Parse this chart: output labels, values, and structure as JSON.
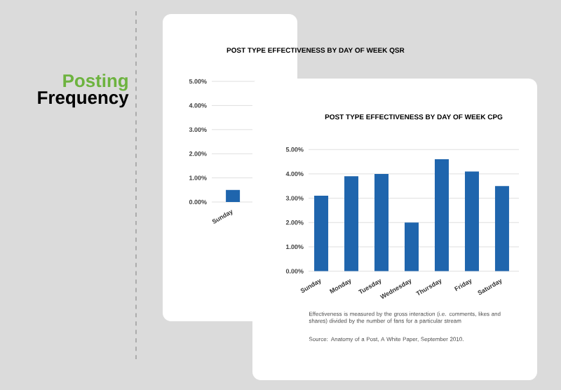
{
  "chart_data": [
    {
      "type": "other",
      "annotations": [
        "Posting",
        "Frequency"
      ]
    },
    {
      "type": "bar",
      "title": "POST TYPE EFFECTIVENESS BY DAY OF WEEK QSR",
      "categories": [
        "Sunday"
      ],
      "values": [
        0.5
      ],
      "color": "#1f65ad",
      "ylim": [
        0,
        5
      ],
      "yticks": [
        {
          "value": 0,
          "label": "0.00%"
        },
        {
          "value": 1,
          "label": "1.00%"
        },
        {
          "value": 2,
          "label": "2.00%"
        },
        {
          "value": 3,
          "label": "3.00%"
        },
        {
          "value": 4,
          "label": "4.00%"
        },
        {
          "value": 5,
          "label": "5.00%"
        }
      ],
      "grid": "y"
    },
    {
      "type": "bar",
      "title": "POST TYPE EFFECTIVENESS BY DAY OF WEEK CPG",
      "categories": [
        "Sunday",
        "Monday",
        "Tuesday",
        "Wednesday",
        "Thursday",
        "Friday",
        "Saturday"
      ],
      "values": [
        3.1,
        3.9,
        4.0,
        2.0,
        4.6,
        4.1,
        3.5
      ],
      "color": "#1f65ad",
      "ylim": [
        0,
        5
      ],
      "yticks": [
        {
          "value": 0,
          "label": "0.00%"
        },
        {
          "value": 1,
          "label": "1.00%"
        },
        {
          "value": 2,
          "label": "2.00%"
        },
        {
          "value": 3,
          "label": "3.00%"
        },
        {
          "value": 4,
          "label": "4.00%"
        },
        {
          "value": 5,
          "label": "5.00%"
        }
      ],
      "grid": "y",
      "annotations": [
        "Effectiveness is measured by the gross interaction (i.e. comments, likes and shares) divided by the number of fans for a particular stream",
        "Source: Anatomy of a Post, A White Paper, September 2010."
      ]
    }
  ]
}
